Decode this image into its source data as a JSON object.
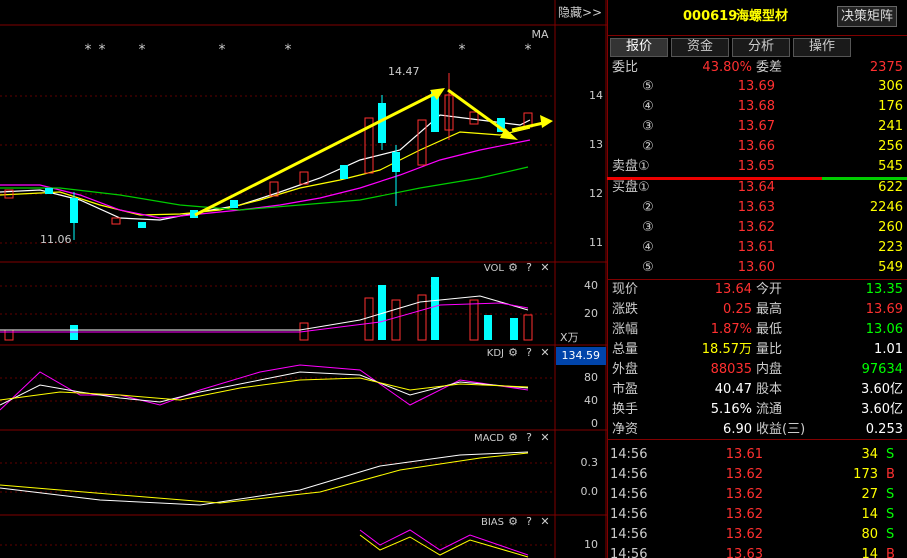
{
  "chart": {
    "hide_button": "隐藏>>",
    "ma_label": "MA",
    "markers": [
      "*",
      "*",
      "*",
      "*",
      "*",
      "*",
      "*"
    ],
    "high_label": "14.47",
    "low_label": "11.06",
    "price_ticks": [
      "14",
      "13",
      "12",
      "11"
    ],
    "vol": {
      "title": "VOL",
      "ticks": [
        "40",
        "20"
      ],
      "unit": "X万"
    },
    "kdj": {
      "title": "KDJ",
      "cursor_value": "134.59",
      "ticks": [
        "80",
        "40",
        "0"
      ]
    },
    "macd": {
      "title": "MACD",
      "ticks": [
        "0.3",
        "0.0"
      ]
    },
    "bias": {
      "title": "BIAS",
      "ticks": [
        "10"
      ]
    },
    "panel_icons": [
      "⚙",
      "?",
      "✕"
    ]
  },
  "header": {
    "code": "000619",
    "name": "海螺型材",
    "button": "决策矩阵"
  },
  "tabs": [
    "报价",
    "资金",
    "分析",
    "操作"
  ],
  "order_ratio": {
    "label": "委比",
    "value": "43.80%",
    "label2": "委差",
    "value2": "2375"
  },
  "sell": [
    {
      "level": "⑤",
      "price": "13.69",
      "volume": "306"
    },
    {
      "level": "④",
      "price": "13.68",
      "volume": "176"
    },
    {
      "level": "③",
      "price": "13.67",
      "volume": "241"
    },
    {
      "level": "②",
      "price": "13.66",
      "volume": "256"
    },
    {
      "level": "卖盘①",
      "price": "13.65",
      "volume": "545"
    }
  ],
  "buy": [
    {
      "level": "买盘①",
      "price": "13.64",
      "volume": "622"
    },
    {
      "level": "②",
      "price": "13.63",
      "volume": "2246"
    },
    {
      "level": "③",
      "price": "13.62",
      "volume": "260"
    },
    {
      "level": "④",
      "price": "13.61",
      "volume": "223"
    },
    {
      "level": "⑤",
      "price": "13.60",
      "volume": "549"
    }
  ],
  "stats": [
    [
      "现价",
      "13.64",
      "今开",
      "13.35"
    ],
    [
      "涨跌",
      "0.25",
      "最高",
      "13.69"
    ],
    [
      "涨幅",
      "1.87%",
      "最低",
      "13.06"
    ],
    [
      "总量",
      "18.57万",
      "量比",
      "1.01"
    ],
    [
      "外盘",
      "88035",
      "内盘",
      "97634"
    ],
    [
      "市盈",
      "40.47",
      "股本",
      "3.60亿"
    ],
    [
      "换手",
      "5.16%",
      "流通",
      "3.60亿"
    ],
    [
      "净资",
      "6.90",
      "收益(三)",
      "0.253"
    ]
  ],
  "trades": [
    [
      "14:56",
      "13.61",
      "34",
      "S"
    ],
    [
      "14:56",
      "13.62",
      "173",
      "B"
    ],
    [
      "14:56",
      "13.62",
      "27",
      "S"
    ],
    [
      "14:56",
      "13.62",
      "14",
      "S"
    ],
    [
      "14:56",
      "13.62",
      "80",
      "S"
    ],
    [
      "14:56",
      "13.63",
      "14",
      "B"
    ]
  ]
}
